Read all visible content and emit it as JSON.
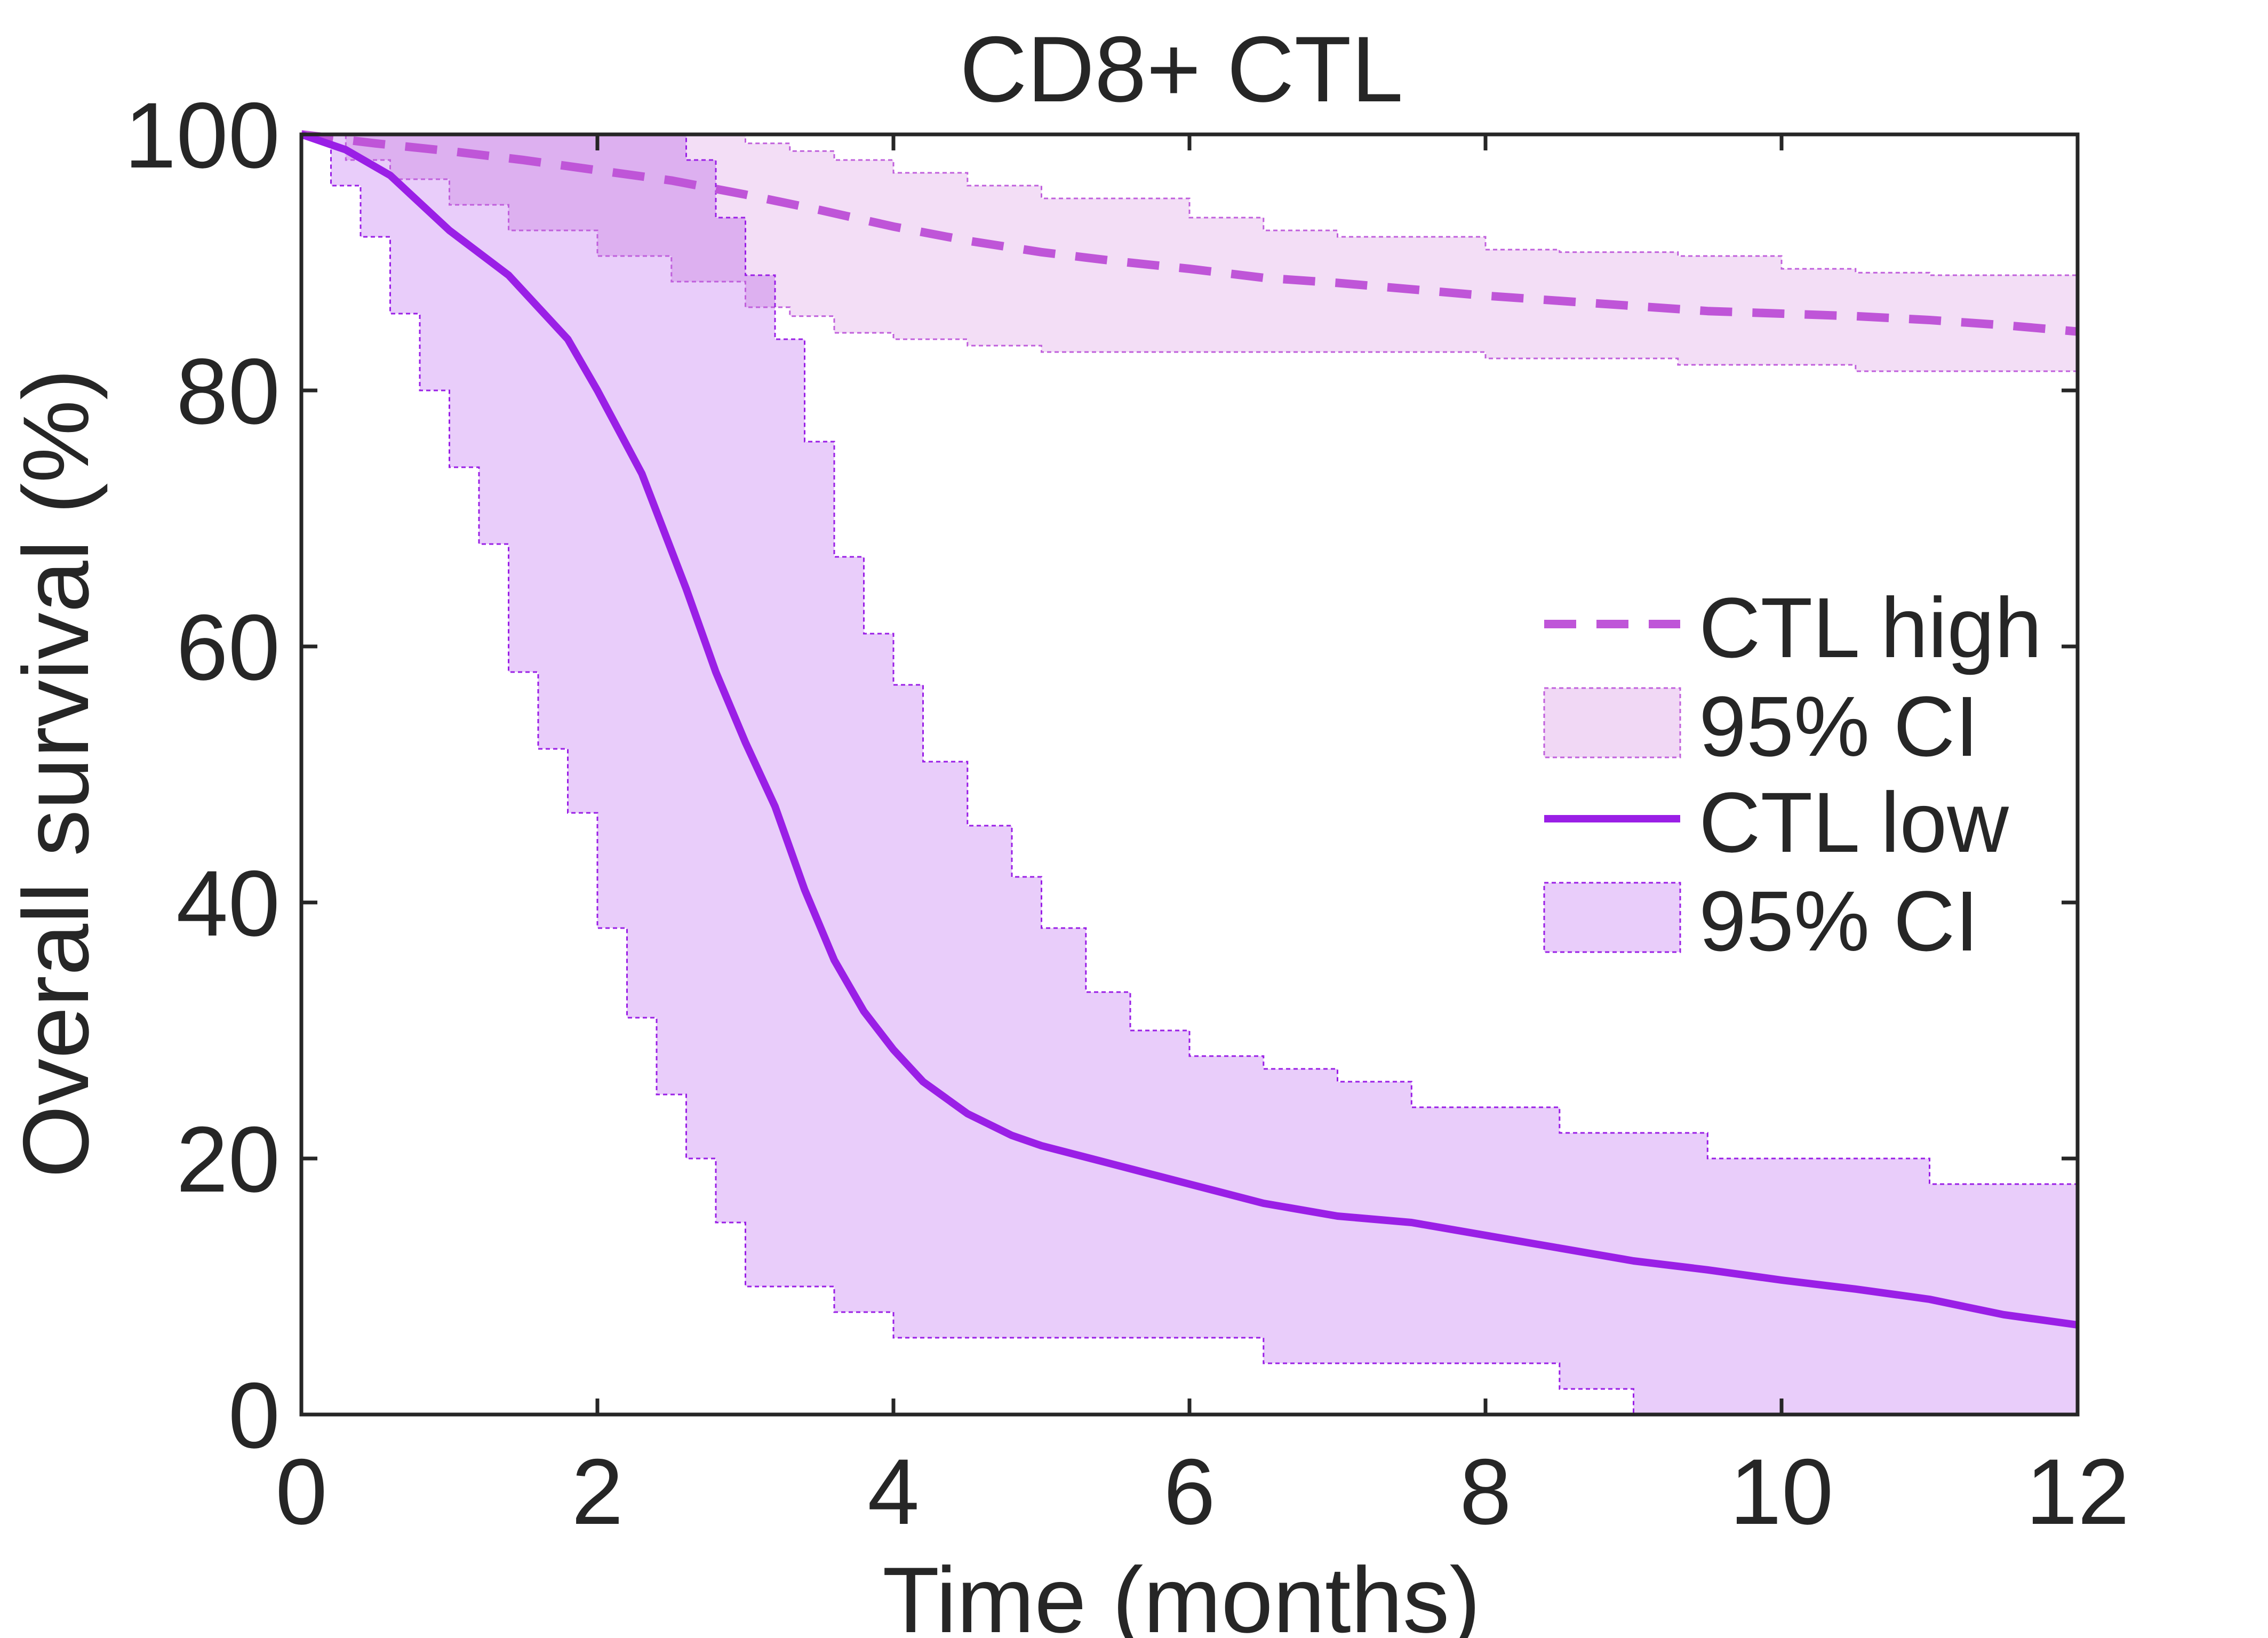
{
  "chart_data": {
    "type": "line",
    "title": "CD8+ CTL",
    "xlabel": "Time (months)",
    "ylabel": "Overall survival (%)",
    "xlim": [
      0,
      12
    ],
    "ylim": [
      0,
      100
    ],
    "xticks": [
      0,
      2,
      4,
      6,
      8,
      10,
      12
    ],
    "yticks": [
      0,
      20,
      40,
      60,
      80,
      100
    ],
    "grid": false,
    "legend_position": "right",
    "colors": {
      "high_line": "#bf55d8",
      "high_ci_fill": "#f1d8f5",
      "high_ci_edge": "#c060dc",
      "low_line": "#9a1fe6",
      "low_ci_fill": "#e9cdfa",
      "low_ci_edge": "#9a1fe6",
      "overlap_fill": "#ddb0f0",
      "axis": "#262626"
    },
    "series": [
      {
        "name": "CTL high",
        "style": "dashed",
        "x": [
          0,
          0.5,
          1,
          1.5,
          2,
          2.5,
          3,
          3.5,
          4,
          4.5,
          5,
          5.5,
          6,
          6.5,
          7,
          7.5,
          8,
          8.5,
          9,
          9.5,
          10,
          10.5,
          11,
          11.5,
          12
        ],
        "y": [
          100,
          99.3,
          98.7,
          98,
          97.2,
          96.4,
          95.3,
          94.1,
          92.8,
          91.7,
          90.8,
          90.1,
          89.5,
          88.8,
          88.4,
          87.9,
          87.4,
          87,
          86.6,
          86.2,
          86,
          85.8,
          85.5,
          85.1,
          84.6
        ]
      },
      {
        "name": "95% CI",
        "role": "ci_high",
        "x": [
          0,
          0.3,
          0.6,
          1,
          1.4,
          2,
          2.5,
          3,
          3.3,
          3.6,
          4,
          4.5,
          5,
          6,
          6.5,
          7,
          8,
          8.5,
          9.3,
          10,
          10.5,
          11,
          12
        ],
        "upper": [
          100,
          100,
          100,
          100,
          100,
          100,
          100,
          99.3,
          98.7,
          98,
          97,
          96,
          95,
          93.5,
          92.5,
          92,
          91,
          90.8,
          90.5,
          89.5,
          89.2,
          89,
          88
        ],
        "lower": [
          100,
          98,
          96.5,
          94.5,
          92.5,
          90.5,
          88.5,
          86.5,
          85.8,
          84.5,
          84,
          83.5,
          83,
          83,
          83,
          83,
          82.5,
          82.5,
          82,
          82,
          81.5,
          81.5,
          81
        ]
      },
      {
        "name": "CTL low",
        "style": "solid",
        "x": [
          0,
          0.3,
          0.6,
          1,
          1.4,
          1.8,
          2,
          2.3,
          2.6,
          2.8,
          3,
          3.2,
          3.4,
          3.6,
          3.8,
          4,
          4.2,
          4.5,
          4.8,
          5,
          5.5,
          6,
          6.5,
          7,
          7.5,
          8,
          8.5,
          9,
          9.5,
          10,
          10.5,
          11,
          11.5,
          12
        ],
        "y": [
          100,
          98.8,
          96.8,
          92.5,
          89,
          84,
          80,
          73.5,
          64.5,
          58,
          52.5,
          47.5,
          41,
          35.5,
          31.5,
          28.5,
          26,
          23.5,
          21.8,
          21,
          19.5,
          18,
          16.5,
          15.5,
          15,
          14,
          13,
          12,
          11.3,
          10.5,
          9.8,
          9,
          7.8,
          7
        ]
      },
      {
        "name": "95% CI",
        "role": "ci_low",
        "x": [
          0,
          0.2,
          0.4,
          0.6,
          0.8,
          1,
          1.2,
          1.4,
          1.6,
          1.8,
          2,
          2.2,
          2.4,
          2.6,
          2.8,
          3,
          3.2,
          3.4,
          3.6,
          3.8,
          4,
          4.2,
          4.5,
          4.8,
          5,
          5.3,
          5.6,
          6,
          6.5,
          7,
          7.5,
          8,
          8.5,
          9,
          9.5,
          10,
          11,
          12
        ],
        "upper": [
          100,
          100,
          100,
          100,
          100,
          100,
          100,
          100,
          100,
          100,
          100,
          100,
          100,
          98,
          93.5,
          89,
          84,
          76,
          67,
          61,
          57,
          51,
          46,
          42,
          38,
          33,
          30,
          28,
          27,
          26,
          24,
          24,
          22,
          22,
          20,
          20,
          18,
          18
        ],
        "lower": [
          100,
          96,
          92,
          86,
          80,
          74,
          68,
          58,
          52,
          47,
          38,
          31,
          25,
          20,
          15,
          10,
          10,
          10,
          8,
          8,
          6,
          6,
          6,
          6,
          6,
          6,
          6,
          6,
          4,
          4,
          4,
          4,
          2,
          0,
          0,
          0,
          0,
          0
        ]
      }
    ],
    "legend": [
      {
        "label": "CTL high",
        "kind": "dashed-line"
      },
      {
        "label": "95% CI",
        "kind": "ci-box-high"
      },
      {
        "label": "CTL low",
        "kind": "solid-line"
      },
      {
        "label": "95% CI",
        "kind": "ci-box-low"
      }
    ]
  }
}
